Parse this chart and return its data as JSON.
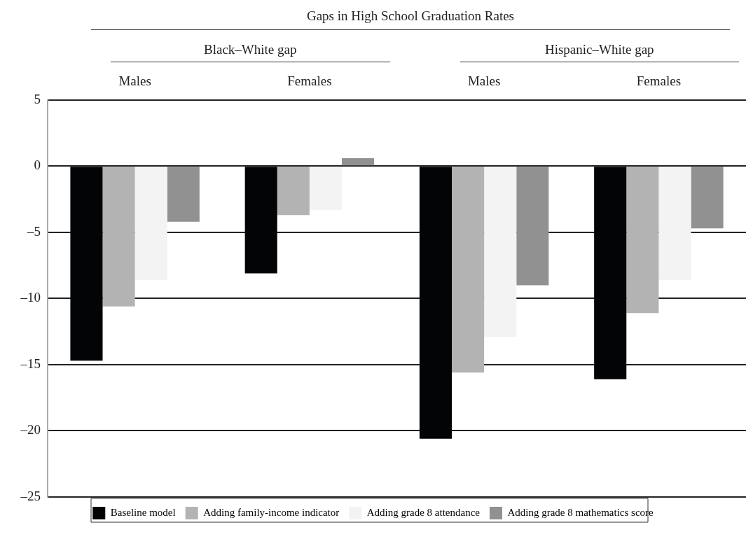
{
  "chart_data": {
    "type": "bar",
    "title": "Gaps in High School Graduation Rates",
    "annotations": [
      "Black–White gap",
      "Hispanic–White gap"
    ],
    "categories": [
      "Males",
      "Females",
      "Males",
      "Females"
    ],
    "series": [
      {
        "name": "Baseline model",
        "color": "#030406",
        "values": [
          -14.7,
          -8.1,
          -20.6,
          -16.1
        ]
      },
      {
        "name": "Adding family-income indicator",
        "color": "#b3b3b3",
        "values": [
          -10.6,
          -3.7,
          -15.6,
          -11.1
        ]
      },
      {
        "name": "Adding grade 8 attendance",
        "color": "#f3f3f3",
        "values": [
          -8.6,
          -3.3,
          -12.9,
          -8.6
        ]
      },
      {
        "name": "Adding grade 8 mathematics score",
        "color": "#919191",
        "values": [
          -4.2,
          0.6,
          -9.0,
          -4.7
        ]
      }
    ],
    "ylim": [
      -25,
      5
    ],
    "yticks": [
      {
        "value": -25,
        "label": "–25"
      },
      {
        "value": -20,
        "label": "–20"
      },
      {
        "value": -15,
        "label": "–15"
      },
      {
        "value": -10,
        "label": "–10"
      },
      {
        "value": -5,
        "label": "–5"
      },
      0,
      5
    ],
    "grid": "y",
    "legend": "bottom"
  }
}
